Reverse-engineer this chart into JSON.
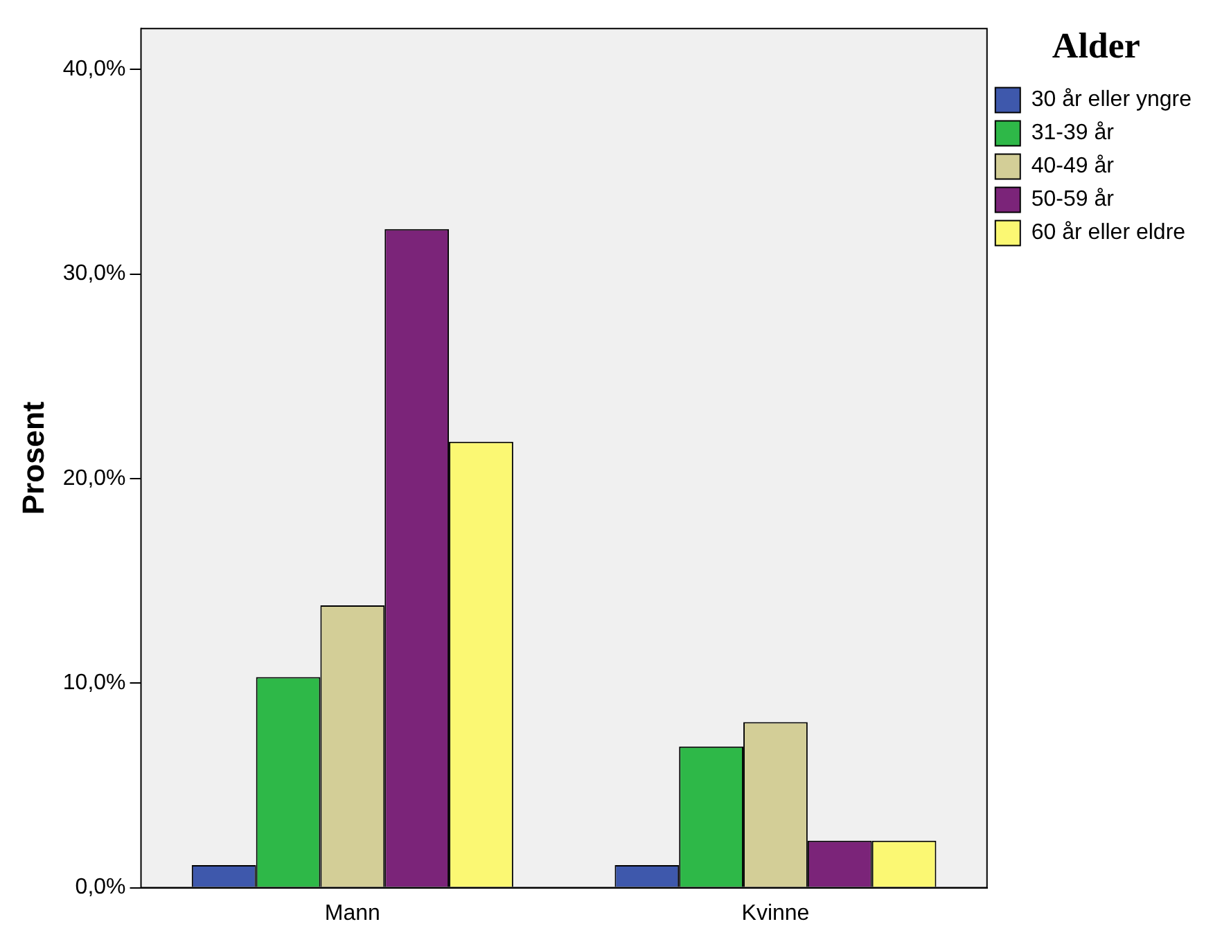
{
  "chart_data": {
    "type": "bar",
    "ylabel": "Prosent",
    "legend_title": "Alder",
    "categories": [
      "Mann",
      "Kvinne"
    ],
    "series": [
      {
        "name": "30 år eller yngre",
        "color": "#3e58ac",
        "values": [
          1.1,
          1.1
        ]
      },
      {
        "name": "31-39 år",
        "color": "#2eb848",
        "values": [
          10.3,
          6.9
        ]
      },
      {
        "name": "40-49 år",
        "color": "#d3ce97",
        "values": [
          13.8,
          8.1
        ]
      },
      {
        "name": "50-59 år",
        "color": "#7b2479",
        "values": [
          32.2,
          2.3
        ]
      },
      {
        "name": "60 år eller eldre",
        "color": "#fbf873",
        "values": [
          21.8,
          2.3
        ]
      }
    ],
    "ylim": [
      0,
      42
    ],
    "yticks": [
      {
        "value": 0,
        "label": "0,0%"
      },
      {
        "value": 10,
        "label": "10,0%"
      },
      {
        "value": 20,
        "label": "20,0%"
      },
      {
        "value": 30,
        "label": "30,0%"
      },
      {
        "value": 40,
        "label": "40,0%"
      }
    ],
    "grid": false,
    "legend": "top right"
  }
}
